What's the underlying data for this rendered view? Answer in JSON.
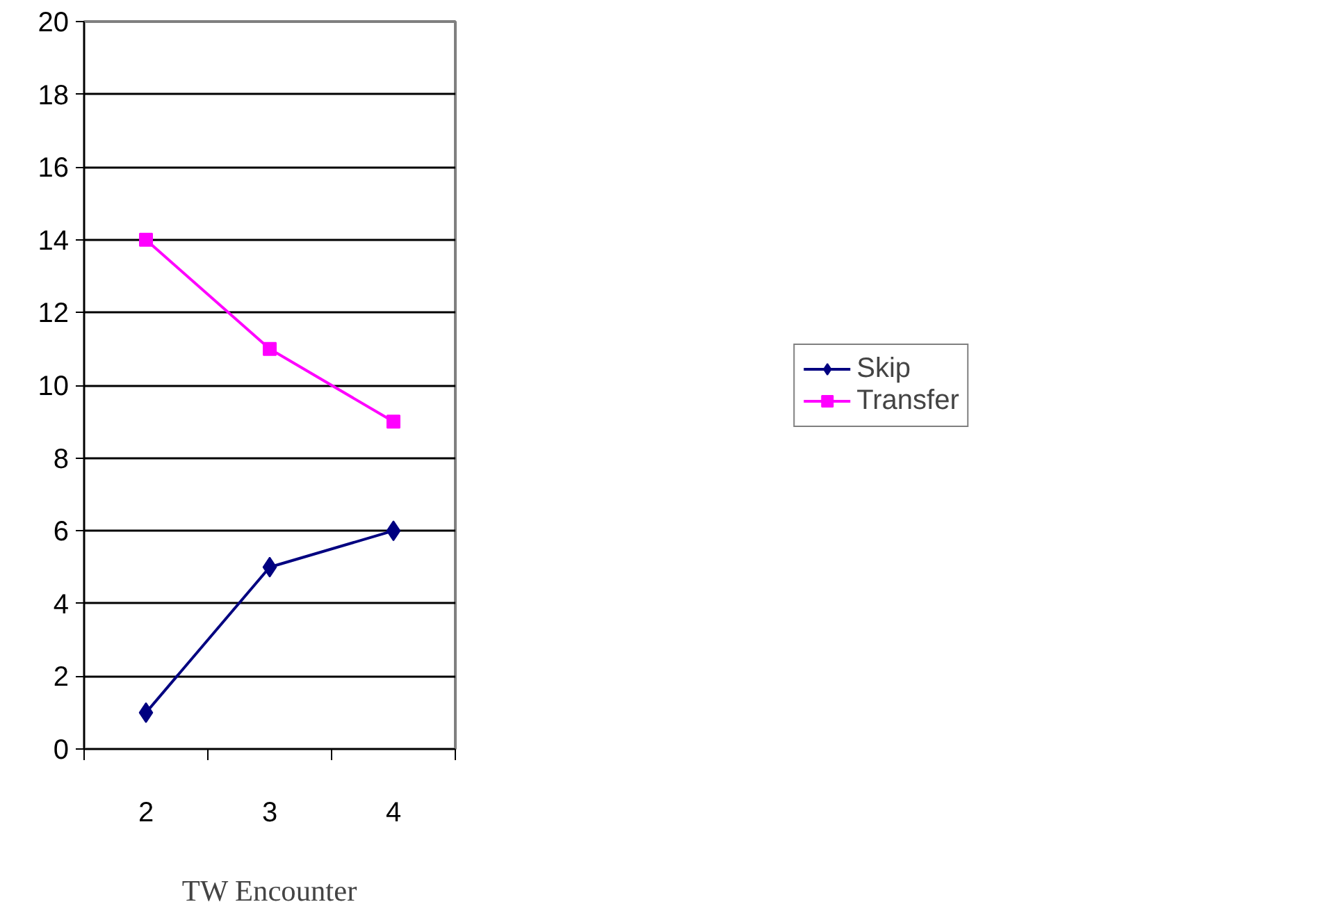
{
  "chart_data": {
    "type": "line",
    "xlabel": "TW Encounter",
    "categories": [
      "2",
      "3",
      "4"
    ],
    "series": [
      {
        "name": "Skip",
        "color": "#000080",
        "values": [
          1,
          5,
          6
        ],
        "marker": "diamond"
      },
      {
        "name": "Transfer",
        "color": "#ff00ff",
        "values": [
          14,
          11,
          9
        ],
        "marker": "square"
      }
    ],
    "ylim": [
      0,
      20
    ],
    "yticks": [
      0,
      2,
      4,
      6,
      8,
      10,
      12,
      14,
      16,
      18,
      20
    ],
    "grid": "y",
    "legend": "right",
    "line_style": "solid"
  }
}
